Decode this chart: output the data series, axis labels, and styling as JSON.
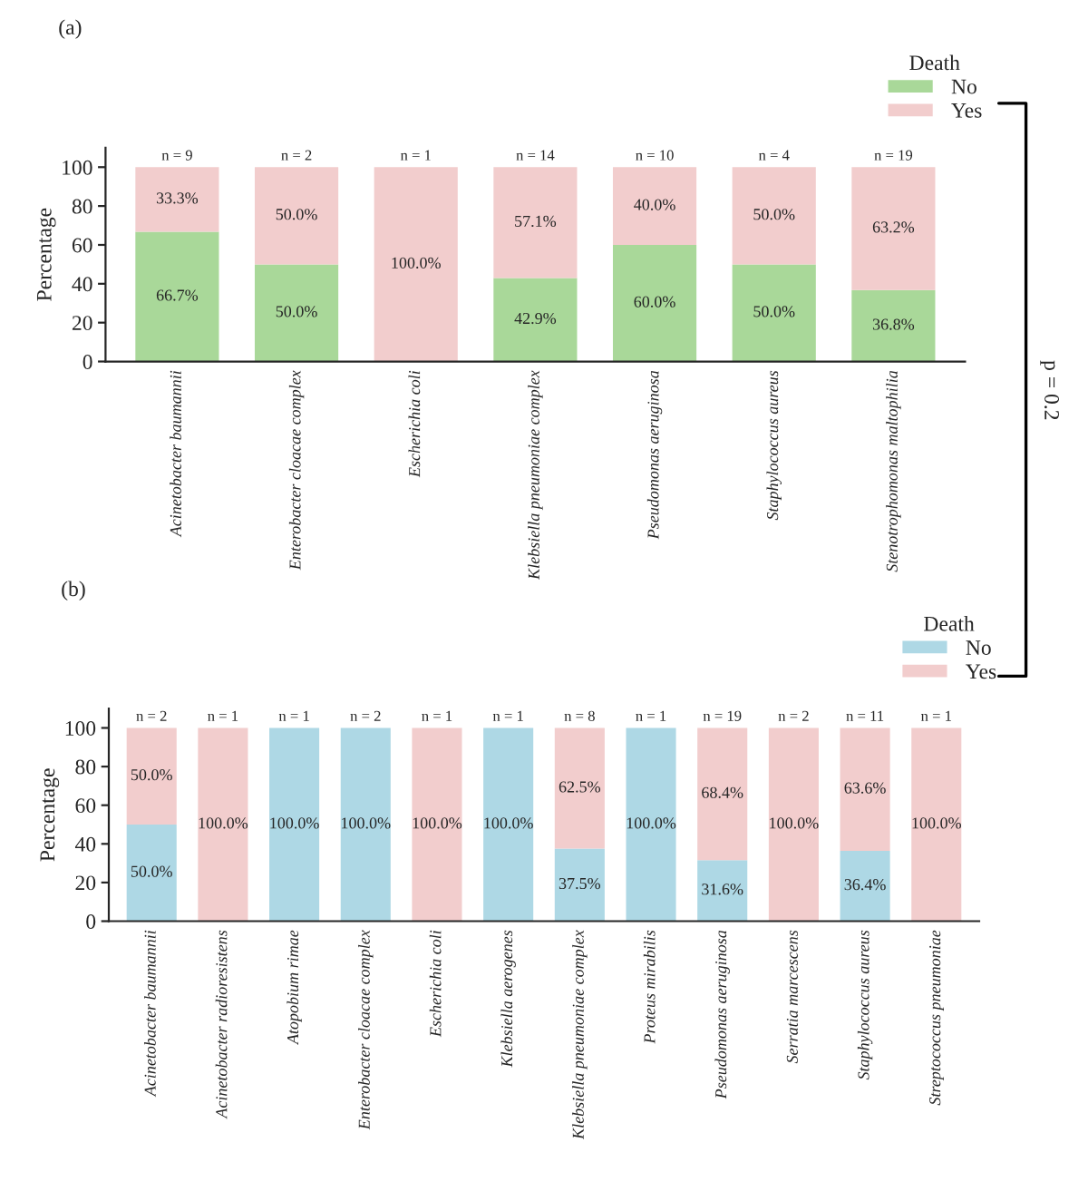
{
  "chart_data": [
    {
      "type": "bar",
      "title": "(a)",
      "ylabel": "Percentage",
      "legend_title": "Death",
      "stacked": true,
      "legend": "top right",
      "grid": false,
      "ylim": [
        0,
        110
      ],
      "yticks": [
        0,
        20,
        40,
        60,
        80,
        100
      ],
      "categories": [
        "Acinetobacter baumannii",
        "Enterobacter cloacae complex",
        "Escherichia coli",
        "Klebsiella pneumoniae complex",
        "Pseudomonas aeruginosa",
        "Staphylococcus aureus",
        "Stenotrophomonas maltophilia"
      ],
      "series": [
        {
          "name": "No",
          "color": "#a9d899",
          "values": [
            66.7,
            50.0,
            0,
            42.9,
            60.0,
            50.0,
            36.8
          ],
          "value_labels": [
            "66.7%",
            "50.0%",
            null,
            "42.9%",
            "60.0%",
            "50.0%",
            "36.8%"
          ]
        },
        {
          "name": "Yes",
          "color": "#f2cdcd",
          "values": [
            33.3,
            50.0,
            100.0,
            57.1,
            40.0,
            50.0,
            63.2
          ],
          "value_labels": [
            "33.3%",
            "50.0%",
            "100.0%",
            "57.1%",
            "40.0%",
            "50.0%",
            "63.2%"
          ]
        }
      ],
      "annotations": [
        {
          "text": "n = 9",
          "x": "Acinetobacter baumannii",
          "y": 100
        },
        {
          "text": "n = 2",
          "x": "Enterobacter cloacae complex",
          "y": 100
        },
        {
          "text": "n = 1",
          "x": "Escherichia coli",
          "y": 100
        },
        {
          "text": "n = 14",
          "x": "Klebsiella pneumoniae complex",
          "y": 100
        },
        {
          "text": "n = 10",
          "x": "Pseudomonas aeruginosa",
          "y": 100
        },
        {
          "text": "n = 4",
          "x": "Staphylococcus aureus",
          "y": 100
        },
        {
          "text": "n = 19",
          "x": "Stenotrophomonas maltophilia",
          "y": 100
        },
        "p = 0.2"
      ]
    },
    {
      "type": "bar",
      "title": "(b)",
      "ylabel": "Percentage",
      "legend_title": "Death",
      "stacked": true,
      "legend": "top right",
      "grid": false,
      "ylim": [
        0,
        110
      ],
      "yticks": [
        0,
        20,
        40,
        60,
        80,
        100
      ],
      "categories": [
        "Acinetobacter baumannii",
        "Acinetobacter radioresistens",
        "Atopobium rimae",
        "Enterobacter cloacae complex",
        "Escherichia coli",
        "Klebsiella aerogenes",
        "Klebsiella pneumoniae complex",
        "Proteus mirabilis",
        "Pseudomonas aeruginosa",
        "Serratia marcescens",
        "Staphylococcus aureus",
        "Streptococcus pneumoniae"
      ],
      "series": [
        {
          "name": "No",
          "color": "#aed8e5",
          "values": [
            50.0,
            0,
            100.0,
            100.0,
            0,
            100.0,
            37.5,
            100.0,
            31.6,
            0,
            36.4,
            0
          ],
          "value_labels": [
            "50.0%",
            null,
            "100.0%",
            "100.0%",
            null,
            "100.0%",
            "37.5%",
            "100.0%",
            "31.6%",
            null,
            "36.4%",
            null
          ]
        },
        {
          "name": "Yes",
          "color": "#f2cdcd",
          "values": [
            50.0,
            100.0,
            0,
            0,
            100.0,
            0,
            62.5,
            0,
            68.4,
            100.0,
            63.6,
            100.0
          ],
          "value_labels": [
            "50.0%",
            "100.0%",
            null,
            null,
            "100.0%",
            null,
            "62.5%",
            null,
            "68.4%",
            "100.0%",
            "63.6%",
            "100.0%"
          ]
        }
      ],
      "annotations": [
        {
          "text": "n = 2",
          "x": "Acinetobacter baumannii",
          "y": 100
        },
        {
          "text": "n = 1",
          "x": "Acinetobacter radioresistens",
          "y": 100
        },
        {
          "text": "n = 1",
          "x": "Atopobium rimae",
          "y": 100
        },
        {
          "text": "n = 2",
          "x": "Enterobacter cloacae complex",
          "y": 100
        },
        {
          "text": "n = 1",
          "x": "Escherichia coli",
          "y": 100
        },
        {
          "text": "n = 1",
          "x": "Klebsiella aerogenes",
          "y": 100
        },
        {
          "text": "n = 8",
          "x": "Klebsiella pneumoniae complex",
          "y": 100
        },
        {
          "text": "n = 1",
          "x": "Proteus mirabilis",
          "y": 100
        },
        {
          "text": "n = 19",
          "x": "Pseudomonas aeruginosa",
          "y": 100
        },
        {
          "text": "n = 2",
          "x": "Serratia marcescens",
          "y": 100
        },
        {
          "text": "n = 11",
          "x": "Staphylococcus aureus",
          "y": 100
        },
        {
          "text": "n = 1",
          "x": "Streptococcus pneumoniae",
          "y": 100
        }
      ]
    }
  ]
}
